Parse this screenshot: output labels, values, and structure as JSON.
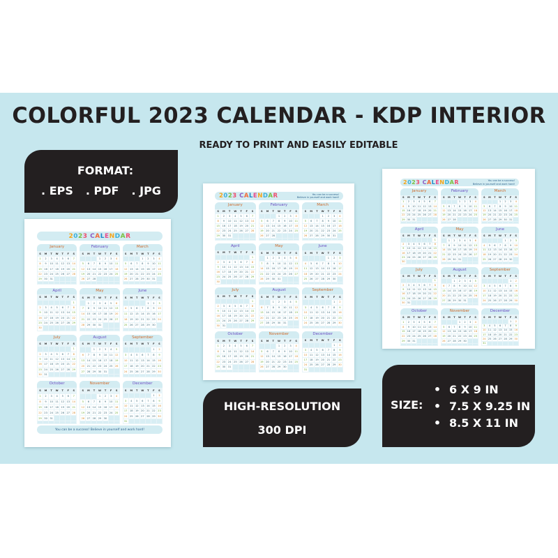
{
  "header": {
    "title": "COLORFUL 2023 CALENDAR - KDP INTERIOR",
    "subtitle": "READY TO PRINT AND EASILY EDITABLE"
  },
  "format_box": {
    "label": "FORMAT:",
    "formats": [
      ". EPS",
      ". PDF",
      ". JPG"
    ]
  },
  "resolution_box": {
    "line1": "HIGH-RESOLUTION",
    "line2": "300 DPI"
  },
  "size_box": {
    "label": "SIZE:",
    "bullet": "•",
    "sizes": [
      "6 X 9 IN",
      "7.5 X 9.25 IN",
      "8.5 X 11 IN"
    ]
  },
  "calendar": {
    "title": "2023 CALENDAR",
    "quote_line1": "You can be a success!",
    "quote_line2": "Believe in yourself and work hard!",
    "footer_quote": "You can be a success! Believe in yourself and work hard!",
    "weekdays": [
      "S",
      "M",
      "T",
      "W",
      "T",
      "F",
      "S"
    ],
    "months": [
      {
        "name": "January",
        "start": 0,
        "days": 31
      },
      {
        "name": "February",
        "start": 3,
        "days": 28
      },
      {
        "name": "March",
        "start": 3,
        "days": 31
      },
      {
        "name": "April",
        "start": 6,
        "days": 30
      },
      {
        "name": "May",
        "start": 1,
        "days": 31
      },
      {
        "name": "June",
        "start": 4,
        "days": 30
      },
      {
        "name": "July",
        "start": 6,
        "days": 31
      },
      {
        "name": "August",
        "start": 2,
        "days": 31
      },
      {
        "name": "September",
        "start": 5,
        "days": 30
      },
      {
        "name": "October",
        "start": 0,
        "days": 31
      },
      {
        "name": "November",
        "start": 3,
        "days": 30
      },
      {
        "name": "December",
        "start": 5,
        "days": 31
      }
    ]
  },
  "colors": {
    "background_band": "#c6e7ee",
    "dark_box": "#231f20",
    "text_dark": "#231f20",
    "text_light": "#ffffff",
    "calendar_header": "#d3ecf2",
    "calendar_cell": "#e7f4f8"
  }
}
